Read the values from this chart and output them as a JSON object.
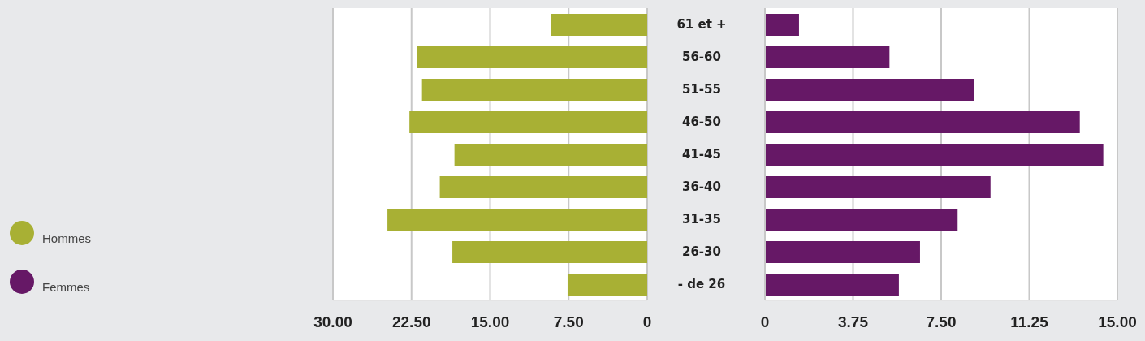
{
  "chart_data": [
    {
      "type": "bar",
      "orientation": "horizontal",
      "series": [
        {
          "name": "Hommes",
          "color": "#a8b034",
          "values": [
            9.2,
            22.0,
            21.5,
            22.7,
            18.4,
            19.8,
            24.8,
            18.6,
            7.6
          ]
        }
      ],
      "xlim": [
        30,
        0
      ],
      "xticks": [
        {
          "value": 30,
          "label": "30.00"
        },
        {
          "value": 22.5,
          "label": "22.50"
        },
        {
          "value": 15,
          "label": "15.00"
        },
        {
          "value": 7.5,
          "label": "7.50"
        },
        0
      ],
      "grid": "x",
      "legend": "left",
      "tick_labels": "x"
    },
    {
      "type": "bar",
      "orientation": "horizontal",
      "categories": [
        "61 et +",
        "56-60",
        "51-55",
        "46-50",
        "41-45",
        "36-40",
        "31-35",
        "26-30",
        "- de 26"
      ],
      "series": [
        {
          "name": "Femmes",
          "color": "#661866",
          "values": [
            1.45,
            5.3,
            8.9,
            13.4,
            14.4,
            9.6,
            8.2,
            6.6,
            5.7
          ]
        }
      ],
      "xlim": [
        0,
        15
      ],
      "xticks": [
        0,
        {
          "value": 3.75,
          "label": "3.75"
        },
        {
          "value": 7.5,
          "label": "7.50"
        },
        {
          "value": 11.25,
          "label": "11.25"
        },
        {
          "value": 15,
          "label": "15.00"
        }
      ],
      "grid": "x",
      "legend": "left"
    }
  ]
}
